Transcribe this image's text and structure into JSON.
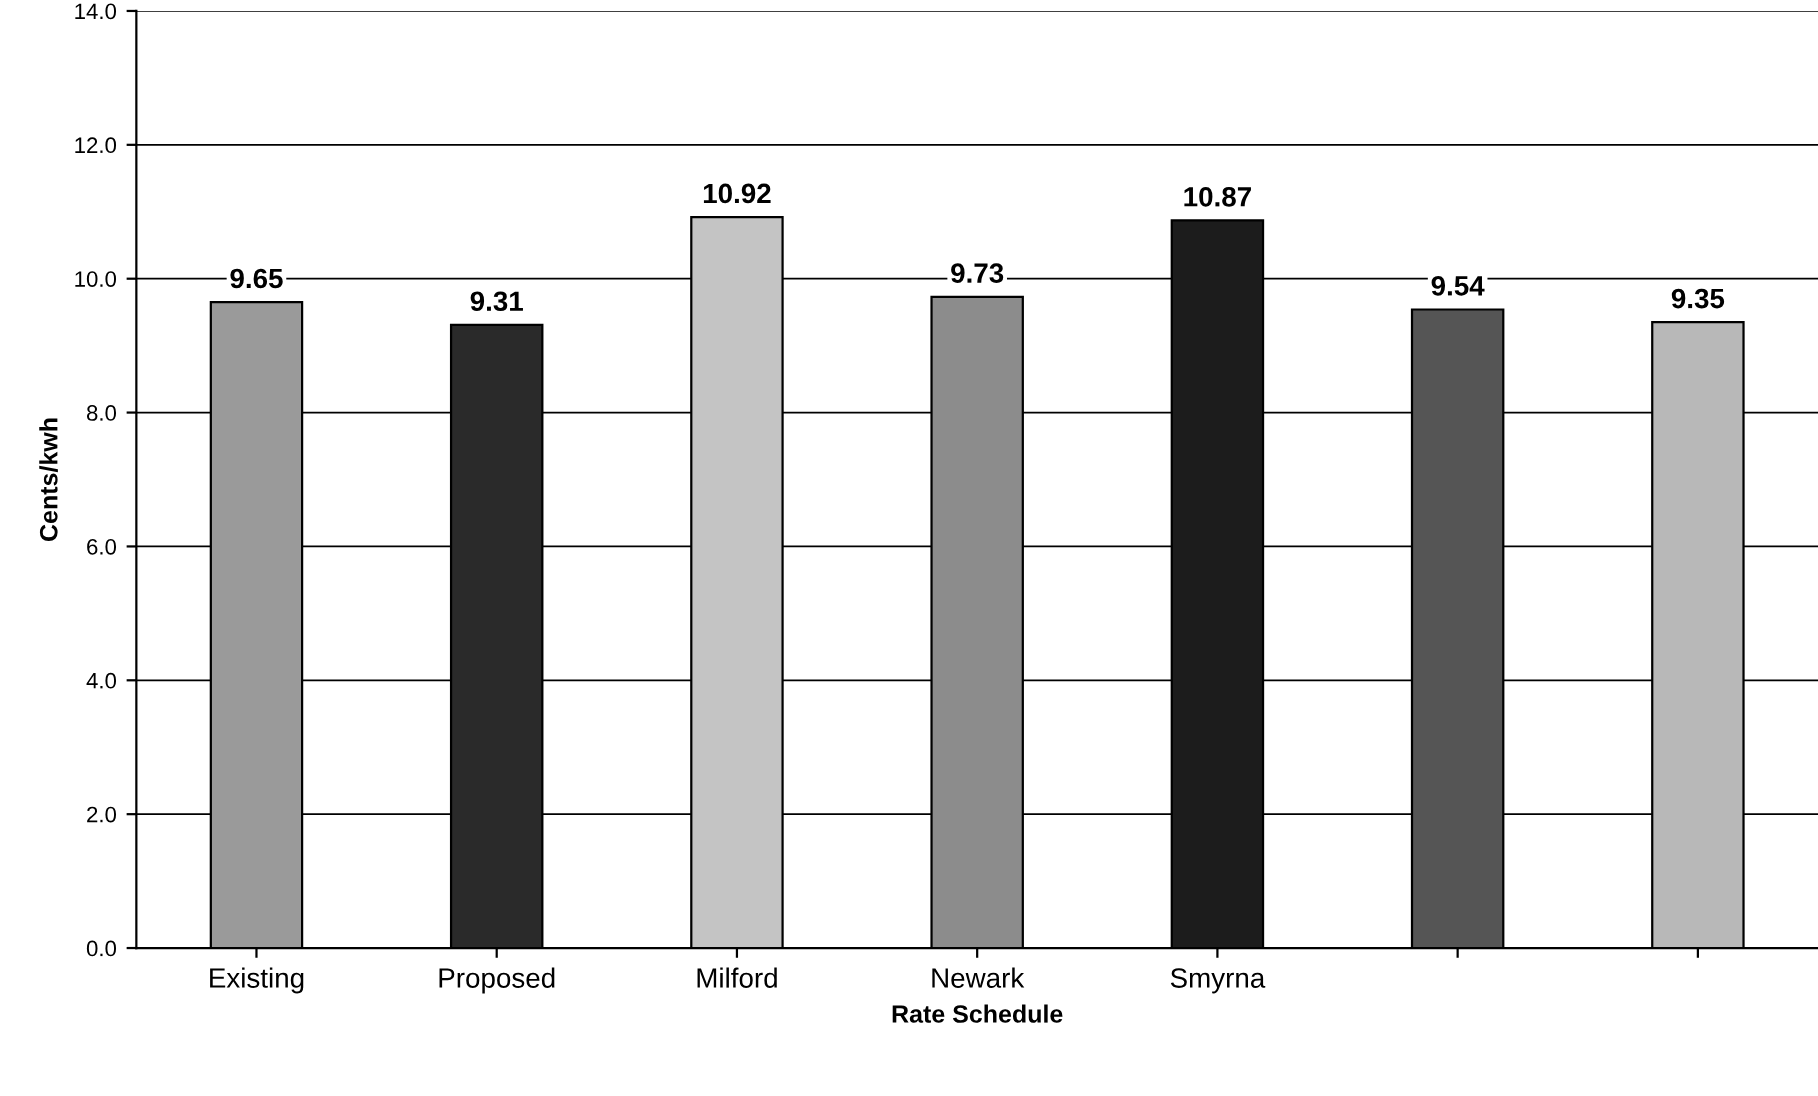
{
  "chart_data": {
    "type": "bar",
    "xlabel": "Rate Schedule",
    "ylabel": "Cents/kwh",
    "categories": [
      "Existing",
      "Proposed",
      "Milford",
      "Newark",
      "Smyrna",
      null,
      null
    ],
    "values": [
      9.65,
      9.31,
      10.92,
      9.73,
      10.87,
      9.54,
      9.35
    ],
    "colors": [
      "#9a9a9a",
      "#2a2a2a",
      "#c4c4c4",
      "#8c8c8c",
      "#1c1c1c",
      "#555555",
      "#b8b8b8"
    ],
    "ylim": [
      0,
      14
    ],
    "yticks": [
      {
        "value": 0,
        "label": "0.0"
      },
      {
        "value": 2,
        "label": "2.0"
      },
      {
        "value": 4,
        "label": "4.0"
      },
      {
        "value": 6,
        "label": "6.0"
      },
      {
        "value": 8,
        "label": "8.0"
      },
      {
        "value": 10,
        "label": "10.0"
      },
      {
        "value": 12,
        "label": "12.0"
      },
      {
        "value": 14,
        "label": "14.0"
      }
    ],
    "grid": "y",
    "data_labels": true
  }
}
